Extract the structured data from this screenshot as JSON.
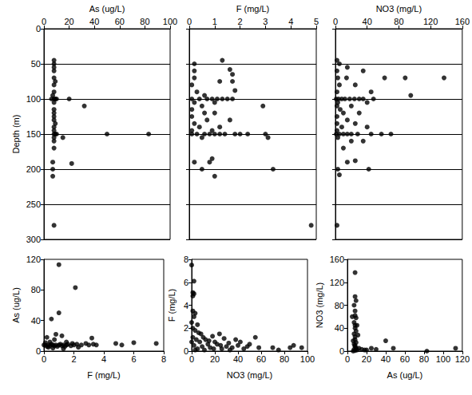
{
  "chart_data": [
    {
      "type": "scatter",
      "x_label": "As (ug/L)",
      "y_label": "Depth (m)",
      "xlim": [
        0,
        100
      ],
      "xticks": [
        0,
        20,
        40,
        60,
        80,
        100
      ],
      "ylim": [
        300,
        0
      ],
      "yticks": [
        0,
        50,
        100,
        150,
        200,
        250,
        300
      ],
      "grid": true,
      "color": "#000000",
      "marker": "circle",
      "x": [
        8,
        8,
        8,
        8,
        8,
        9,
        8,
        8,
        7,
        8,
        9,
        10,
        6,
        20,
        8,
        32,
        8,
        8,
        8,
        8,
        9,
        8,
        8,
        8,
        9,
        10,
        50,
        83,
        15,
        8,
        8,
        8,
        7,
        22,
        7,
        7,
        8
      ],
      "values": [
        45,
        50,
        55,
        60,
        70,
        75,
        80,
        90,
        95,
        100,
        100,
        100,
        100,
        100,
        105,
        110,
        115,
        120,
        125,
        130,
        135,
        140,
        145,
        150,
        150,
        150,
        150,
        150,
        155,
        155,
        160,
        170,
        190,
        192,
        200,
        210,
        280
      ]
    },
    {
      "type": "scatter",
      "x_label": "F (mg/L)",
      "xlim": [
        0,
        5
      ],
      "xticks": [
        0,
        1,
        2,
        3,
        4,
        5
      ],
      "ylim": [
        300,
        0
      ],
      "yticks": [
        0,
        50,
        100,
        150,
        200,
        250,
        300
      ],
      "grid": true,
      "tick_labels": "x",
      "color": "#000000",
      "marker": "circle",
      "x": [
        1.3,
        0.2,
        1.6,
        1.7,
        0.2,
        0.2,
        1.2,
        1.7,
        0.1,
        1.8,
        0.3,
        0.6,
        0.1,
        0.4,
        0.7,
        0.9,
        1.1,
        1.3,
        1.5,
        1.7,
        0.2,
        1.0,
        0.5,
        2.9,
        0.1,
        0.6,
        1.0,
        0.1,
        0.7,
        1.6,
        0.2,
        0.4,
        1.2,
        0.1,
        0.9,
        0.1,
        0.3,
        0.6,
        0.8,
        1.0,
        1.2,
        1.4,
        1.8,
        2.0,
        2.3,
        3.0,
        0.5,
        3.1,
        0.9,
        0.8,
        0.2,
        0.5,
        3.3,
        1.0,
        4.8
      ],
      "values": [
        45,
        50,
        58,
        65,
        60,
        70,
        75,
        75,
        80,
        88,
        90,
        95,
        100,
        100,
        100,
        100,
        100,
        100,
        100,
        100,
        105,
        105,
        110,
        110,
        115,
        120,
        120,
        125,
        130,
        130,
        135,
        140,
        140,
        145,
        145,
        150,
        150,
        150,
        150,
        150,
        150,
        150,
        150,
        150,
        150,
        150,
        155,
        155,
        185,
        190,
        190,
        200,
        200,
        210,
        280
      ]
    },
    {
      "type": "scatter",
      "x_label": "NO3 (mg/L)",
      "xlim": [
        0,
        160
      ],
      "xticks": [
        0,
        40,
        80,
        120,
        160
      ],
      "ylim": [
        300,
        0
      ],
      "yticks": [
        0,
        50,
        100,
        150,
        200,
        250,
        300
      ],
      "grid": true,
      "tick_labels": "x",
      "color": "#000000",
      "marker": "circle",
      "x": [
        2,
        5,
        15,
        2,
        35,
        3,
        14,
        62,
        88,
        137,
        5,
        25,
        2,
        45,
        1,
        4,
        8,
        12,
        18,
        24,
        30,
        35,
        48,
        95,
        3,
        40,
        2,
        20,
        6,
        10,
        30,
        2,
        15,
        2,
        25,
        8,
        40,
        2,
        1,
        5,
        10,
        15,
        20,
        28,
        45,
        58,
        70,
        3,
        20,
        35,
        10,
        25,
        15,
        42,
        3,
        5,
        2
      ],
      "values": [
        45,
        50,
        55,
        60,
        60,
        70,
        70,
        70,
        70,
        70,
        80,
        80,
        90,
        90,
        100,
        100,
        100,
        100,
        100,
        100,
        100,
        100,
        100,
        95,
        105,
        105,
        110,
        110,
        115,
        120,
        120,
        125,
        130,
        135,
        135,
        140,
        140,
        145,
        150,
        150,
        150,
        150,
        150,
        150,
        150,
        150,
        150,
        155,
        160,
        160,
        170,
        188,
        190,
        200,
        200,
        208,
        280
      ]
    },
    {
      "type": "scatter",
      "x_label": "F (mg/L)",
      "y_label": "As (ug/L)",
      "xlim": [
        0,
        8
      ],
      "xticks": [
        0,
        2,
        4,
        6,
        8
      ],
      "ylim": [
        0,
        120
      ],
      "yticks": [
        0,
        40,
        80,
        120
      ],
      "grid": false,
      "color": "#000000",
      "marker": "circle",
      "x": [
        0.1,
        0.2,
        0.3,
        0.4,
        0.5,
        0.6,
        0.7,
        0.8,
        0.9,
        1.0,
        1.1,
        1.2,
        1.3,
        1.4,
        1.5,
        1.6,
        1.8,
        2.0,
        2.2,
        2.5,
        0.2,
        0.5,
        0.8,
        1.0,
        1.0,
        1.2,
        1.5,
        2.1,
        0.4,
        0.7,
        1.9,
        2.8,
        3.0,
        3.2,
        3.3,
        3.5,
        4.8,
        5.2,
        6.0,
        7.5,
        0.3,
        0.6,
        1.3,
        2.3,
        0,
        0.1
      ],
      "values": [
        8,
        6,
        8,
        7,
        9,
        8,
        7,
        8,
        6,
        8,
        9,
        7,
        8,
        6,
        8,
        9,
        7,
        8,
        9,
        8,
        18,
        42,
        22,
        113,
        50,
        20,
        12,
        83,
        12,
        15,
        10,
        10,
        8,
        17,
        9,
        8,
        10,
        8,
        11,
        10,
        5,
        4,
        3,
        5,
        8,
        11
      ]
    },
    {
      "type": "scatter",
      "x_label": "NO3 (mg/L)",
      "y_label": "F (mg/L)",
      "xlim": [
        0,
        100
      ],
      "xticks": [
        0,
        20,
        40,
        60,
        80,
        100
      ],
      "ylim": [
        0,
        8
      ],
      "yticks": [
        0,
        2,
        4,
        6,
        8
      ],
      "grid": false,
      "color": "#000000",
      "marker": "circle",
      "x": [
        0,
        2,
        1,
        1,
        2,
        1,
        3,
        2,
        0,
        5,
        1,
        3,
        6,
        8,
        10,
        12,
        15,
        18,
        20,
        22,
        25,
        28,
        30,
        32,
        35,
        38,
        40,
        42,
        45,
        48,
        50,
        55,
        58,
        2,
        4,
        5,
        7,
        9,
        11,
        14,
        16,
        19,
        24,
        26,
        33,
        70,
        75,
        85,
        88,
        95,
        1,
        3,
        0
      ],
      "values": [
        7.5,
        6.1,
        5.1,
        4.8,
        5.0,
        3.5,
        3.3,
        3.0,
        2.5,
        2.3,
        2.0,
        1.8,
        1.6,
        1.5,
        1.2,
        1.0,
        0.9,
        1.3,
        0.8,
        0.6,
        0.5,
        1.1,
        0.4,
        0.7,
        0.3,
        1.0,
        0.5,
        0.8,
        0.2,
        0.4,
        0.6,
        1.2,
        0.3,
        0.5,
        1.0,
        0.2,
        0.8,
        0.4,
        0.1,
        0.6,
        0.3,
        0.2,
        1.5,
        0.2,
        0.1,
        0.3,
        0.1,
        0.3,
        0.5,
        0.3,
        1.2,
        0.1,
        0.8
      ]
    },
    {
      "type": "scatter",
      "x_label": "As (ug/L)",
      "y_label": "NO3 (mg/L)",
      "xlim": [
        0,
        120
      ],
      "xticks": [
        0,
        20,
        40,
        60,
        80,
        100,
        120
      ],
      "ylim": [
        0,
        160
      ],
      "yticks": [
        0,
        40,
        80,
        120,
        160
      ],
      "grid": false,
      "color": "#000000",
      "marker": "circle",
      "x": [
        8,
        8,
        9,
        7,
        8,
        8,
        9,
        7,
        8,
        8,
        9,
        7,
        8,
        8,
        9,
        7,
        8,
        8,
        9,
        7,
        8,
        6,
        10,
        12,
        15,
        18,
        20,
        25,
        30,
        40,
        48,
        83,
        113,
        10,
        11,
        6,
        5
      ],
      "values": [
        137,
        95,
        88,
        80,
        70,
        62,
        58,
        50,
        45,
        40,
        35,
        30,
        25,
        20,
        15,
        12,
        10,
        8,
        5,
        3,
        1,
        0,
        2,
        5,
        3,
        2,
        2,
        5,
        3,
        18,
        5,
        0,
        5,
        45,
        28,
        18,
        60
      ]
    }
  ]
}
